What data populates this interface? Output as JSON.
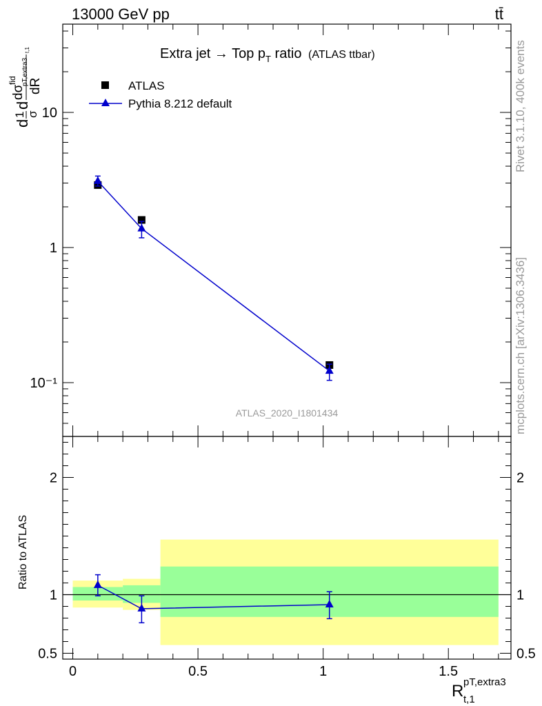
{
  "header": {
    "energy_label": "13000 GeV pp",
    "process_label": "tt̄"
  },
  "side_labels": {
    "rivet": "Rivet 3.1.10,  400k events",
    "source": "mcplots.cern.ch [arXiv:1306.3436]"
  },
  "chart_data": [
    {
      "type": "line",
      "panel": "main",
      "title_main": "Extra jet → Top p",
      "title_sub": "T",
      "title_rest": " ratio",
      "title_small": "(ATLAS ttbar)",
      "watermark": "ATLAS_2020_I1801434",
      "ylabel": "d(1/σ dσfid/dR)",
      "yscale": "log",
      "ylim": [
        0.04,
        45
      ],
      "xlim": [
        -0.04,
        1.75
      ],
      "ytick_labels": [
        "10⁻¹",
        "1",
        "10"
      ],
      "ytick_values": [
        0.1,
        1,
        10
      ],
      "series": [
        {
          "name": "ATLAS",
          "marker": "square",
          "color": "#000000",
          "x": [
            0.1,
            0.275,
            1.025
          ],
          "y": [
            2.9,
            1.6,
            0.135
          ],
          "yerr_lo": [
            0.1,
            0.07,
            0.006
          ],
          "yerr_hi": [
            0.1,
            0.07,
            0.006
          ]
        },
        {
          "name": "Pythia 8.212 default",
          "marker": "triangle",
          "color": "#0000cc",
          "x": [
            0.1,
            0.275,
            1.025
          ],
          "y": [
            3.1,
            1.38,
            0.122
          ],
          "yerr_lo": [
            0.25,
            0.2,
            0.018
          ],
          "yerr_hi": [
            0.28,
            0.18,
            0.015
          ]
        }
      ]
    },
    {
      "type": "line",
      "panel": "ratio",
      "ylabel": "Ratio to ATLAS",
      "xlabel": "R",
      "xlabel_sup": "pT,extra3",
      "xlabel_sub": "t,1",
      "ylim": [
        0.45,
        2.35
      ],
      "xlim": [
        -0.04,
        1.75
      ],
      "ytick_labels": [
        "0.5",
        "1",
        "2"
      ],
      "ytick_values": [
        0.5,
        1,
        2
      ],
      "xtick_labels": [
        "0",
        "0.5",
        "1",
        "1.5"
      ],
      "xtick_values": [
        0,
        0.5,
        1,
        1.5
      ],
      "bands": [
        {
          "x0": 0.0,
          "x1": 0.2,
          "green": [
            0.95,
            1.065
          ],
          "yellow": [
            0.89,
            1.12
          ]
        },
        {
          "x0": 0.2,
          "x1": 0.35,
          "green": [
            0.93,
            1.08
          ],
          "yellow": [
            0.87,
            1.135
          ]
        },
        {
          "x0": 0.35,
          "x1": 1.7,
          "green": [
            0.81,
            1.24
          ],
          "yellow": [
            0.57,
            1.47
          ]
        }
      ],
      "series": [
        {
          "name": "Pythia 8.212 default",
          "color": "#0000cc",
          "x": [
            0.1,
            0.275,
            1.025
          ],
          "y": [
            1.08,
            0.88,
            0.915
          ],
          "yerr_lo": [
            0.09,
            0.12,
            0.12
          ],
          "yerr_hi": [
            0.09,
            0.11,
            0.11
          ]
        }
      ]
    }
  ]
}
